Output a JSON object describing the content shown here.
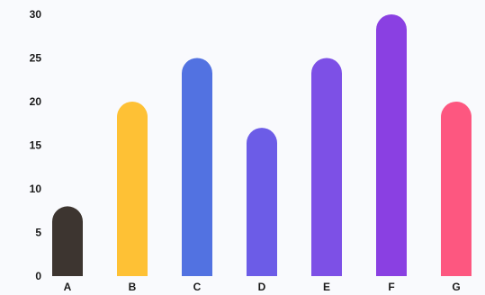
{
  "chart_data": {
    "type": "bar",
    "categories": [
      "A",
      "B",
      "C",
      "D",
      "E",
      "F",
      "G"
    ],
    "values": [
      8,
      20,
      25,
      17,
      25,
      30,
      20
    ],
    "colors": [
      "#3d3530",
      "#fec135",
      "#5272e1",
      "#6c5ce7",
      "#7d50e6",
      "#8a40e2",
      "#fd5780"
    ],
    "ylim": [
      0,
      30
    ],
    "yticks": [
      0,
      5,
      10,
      15,
      20,
      25,
      30
    ],
    "grid": false,
    "legend": "none",
    "bar_style": "rounded-top"
  }
}
